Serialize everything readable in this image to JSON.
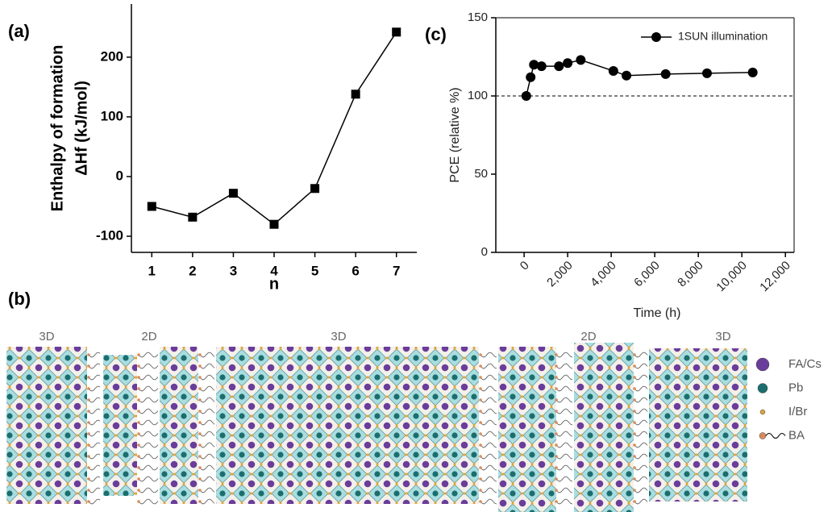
{
  "chart_data": [
    {
      "type": "line",
      "panel_label": "(a)",
      "ylabel": [
        "Enthalpy of formation",
        "ΔHf (kJ/mol)"
      ],
      "xlabel": "n",
      "x": [
        1,
        2,
        3,
        4,
        5,
        6,
        7
      ],
      "values": [
        -50,
        -68,
        -28,
        -80,
        -20,
        138,
        242
      ],
      "color": "#000000",
      "marker": "square",
      "xlim": [
        0.5,
        7.5
      ],
      "xticks": [
        1,
        2,
        3,
        4,
        5,
        6,
        7
      ],
      "ylim": [
        -127,
        289
      ],
      "yticks": [
        -100,
        0,
        100,
        200
      ]
    },
    {
      "type": "line",
      "panel_label": "(c)",
      "ylabel": "PCE (relative %)",
      "xlabel": "Time (h)",
      "x": [
        100,
        300,
        450,
        800,
        1600,
        2000,
        2600,
        4100,
        4700,
        6500,
        8400,
        10500
      ],
      "series": [
        {
          "name": "1SUN illumination",
          "color": "#000000",
          "values": [
            100,
            112,
            120,
            119,
            119,
            121,
            123,
            116,
            113,
            114,
            114.5,
            115
          ]
        }
      ],
      "marker": "circle",
      "hline": 100,
      "legend": "upper right",
      "xlim": [
        -1300,
        12400
      ],
      "xticks": [
        {
          "value": 0,
          "label": "0"
        },
        {
          "value": 2000,
          "label": "2,000"
        },
        {
          "value": 4000,
          "label": "4,000"
        },
        {
          "value": 6000,
          "label": "6,000"
        },
        {
          "value": 8000,
          "label": "8,000"
        },
        {
          "value": 10000,
          "label": "10,000"
        },
        {
          "value": 12000,
          "label": "12,000"
        }
      ],
      "ylim": [
        0,
        150
      ],
      "yticks": [
        0,
        50,
        100,
        150
      ]
    }
  ],
  "diagram": {
    "panel_label": "(b)",
    "region_labels": [
      "3D",
      "2D",
      "3D",
      "2D",
      "3D"
    ],
    "legend": [
      "FA/Cs",
      "Pb",
      "I/Br",
      "BA"
    ]
  }
}
